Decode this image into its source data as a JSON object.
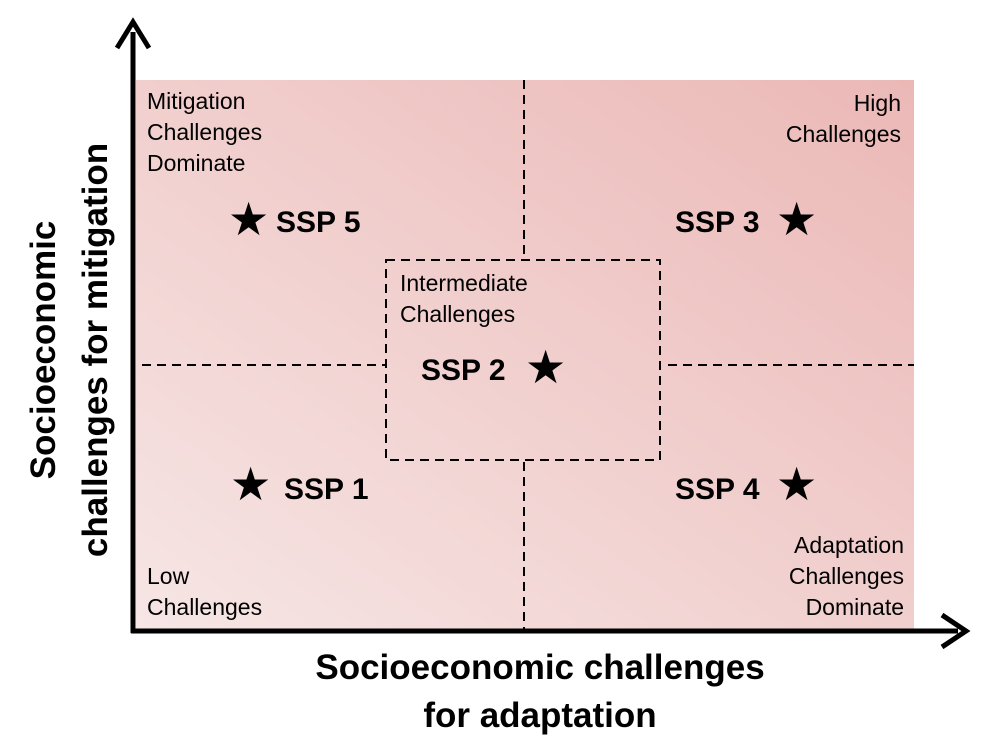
{
  "quadrants": {
    "top_left": "Mitigation\nChallenges\nDominate",
    "top_right": "High\nChallenges",
    "bottom_left": "Low\nChallenges",
    "bottom_right": "Adaptation\nChallenges\nDominate",
    "center": "Intermediate\nChallenges"
  },
  "scenarios": {
    "ssp1": "SSP 1",
    "ssp2": "SSP 2",
    "ssp3": "SSP 3",
    "ssp4": "SSP 4",
    "ssp5": "SSP 5"
  },
  "axes": {
    "x_line1": "Socioeconomic challenges",
    "x_line2": "for adaptation",
    "y_line1": "Socioeconomic",
    "y_line2": "challenges for mitigation"
  },
  "colors": {
    "background_low": "#f5e4e3",
    "background_high": "#ecbcba",
    "axis": "#000000",
    "dashed": "#000000"
  }
}
